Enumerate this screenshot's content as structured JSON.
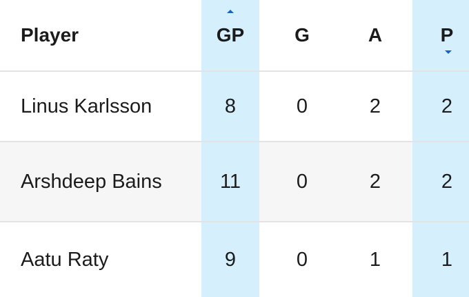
{
  "colors": {
    "highlight_column": "#d6effc",
    "sort_indicator": "#1565c0",
    "row_stripe": "#f6f6f6",
    "divider": "#e3e3e3"
  },
  "header": {
    "player": "Player",
    "gp": "GP",
    "g": "G",
    "a": "A",
    "p": "P",
    "gp_sort_icon": "caret-up-icon",
    "p_sort_icon": "caret-down-icon"
  },
  "rows": [
    {
      "player": "Linus Karlsson",
      "gp": "8",
      "g": "0",
      "a": "2",
      "p": "2"
    },
    {
      "player": "Arshdeep Bains",
      "gp": "11",
      "g": "0",
      "a": "2",
      "p": "2"
    },
    {
      "player": "Aatu Raty",
      "gp": "9",
      "g": "0",
      "a": "1",
      "p": "1"
    }
  ]
}
